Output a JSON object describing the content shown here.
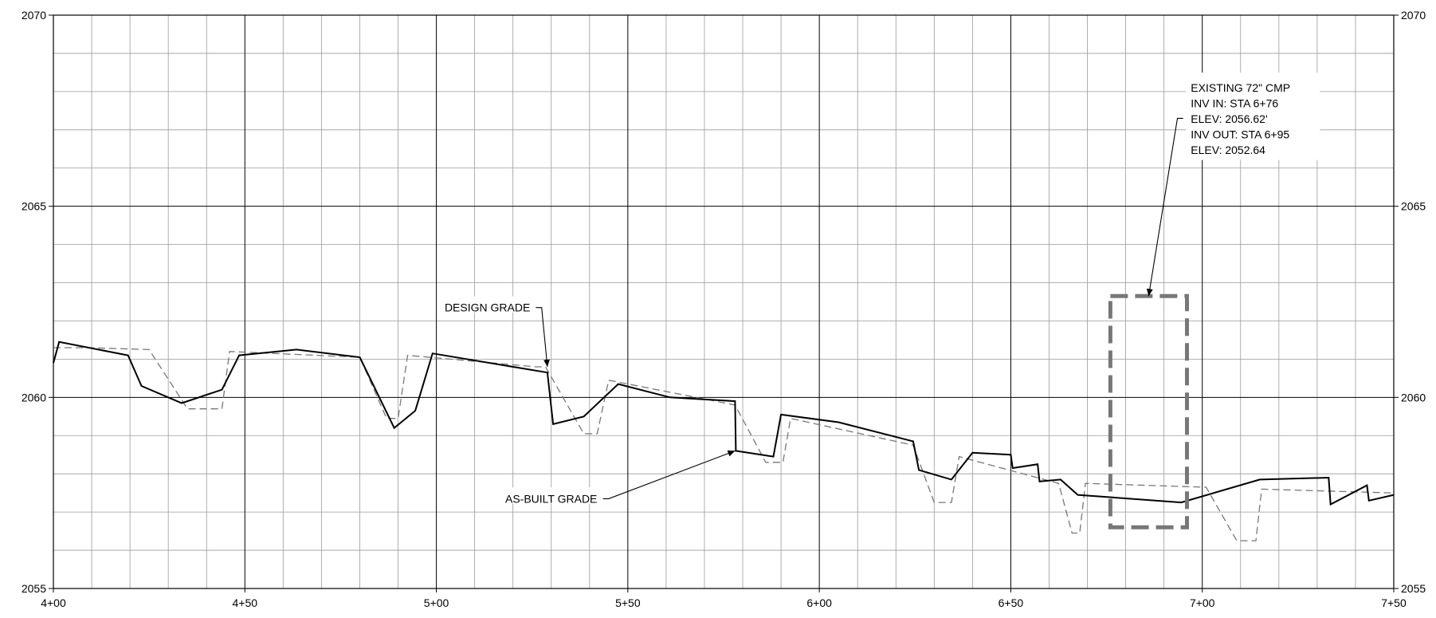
{
  "chart_data": {
    "type": "line",
    "title": "",
    "xlabel": "",
    "ylabel": "",
    "xlim": [
      400,
      750
    ],
    "ylim": [
      2055,
      2070
    ],
    "grid": true,
    "x_ticks": [
      400,
      450,
      500,
      550,
      600,
      650,
      700,
      750
    ],
    "x_tick_labels": [
      "4+00",
      "4+50",
      "5+00",
      "5+50",
      "6+00",
      "6+50",
      "7+00",
      "7+50"
    ],
    "y_ticks": [
      2055,
      2060,
      2065,
      2070
    ],
    "y_tick_labels": [
      "2055",
      "2060",
      "2065",
      "2070"
    ],
    "series": [
      {
        "name": "AS-BUILT GRADE",
        "style": "solid",
        "color": "#000000",
        "points": [
          [
            400,
            2060.9
          ],
          [
            401.5,
            2061.45
          ],
          [
            419.5,
            2061.1
          ],
          [
            423,
            2060.3
          ],
          [
            433.5,
            2059.85
          ],
          [
            444,
            2060.2
          ],
          [
            448.5,
            2061.1
          ],
          [
            463.5,
            2061.25
          ],
          [
            480,
            2061.05
          ],
          [
            489,
            2059.2
          ],
          [
            494.5,
            2059.65
          ],
          [
            499,
            2061.15
          ],
          [
            529,
            2060.65
          ],
          [
            530.5,
            2059.3
          ],
          [
            538.5,
            2059.5
          ],
          [
            547.5,
            2060.35
          ],
          [
            561,
            2060
          ],
          [
            578,
            2059.9
          ],
          [
            578.2,
            2058.6
          ],
          [
            588,
            2058.45
          ],
          [
            590,
            2059.55
          ],
          [
            605,
            2059.35
          ],
          [
            624.5,
            2058.85
          ],
          [
            626,
            2058.1
          ],
          [
            634.5,
            2057.85
          ],
          [
            640,
            2058.55
          ],
          [
            650,
            2058.5
          ],
          [
            650.5,
            2058.15
          ],
          [
            657,
            2058.25
          ],
          [
            657.5,
            2057.8
          ],
          [
            663,
            2057.85
          ],
          [
            667.5,
            2057.45
          ],
          [
            694.5,
            2057.25
          ],
          [
            715,
            2057.85
          ],
          [
            733,
            2057.9
          ],
          [
            733.5,
            2057.2
          ],
          [
            743,
            2057.7
          ],
          [
            743.5,
            2057.3
          ],
          [
            750,
            2057.45
          ]
        ]
      },
      {
        "name": "DESIGN GRADE",
        "style": "dashed",
        "color": "#777777",
        "points": [
          [
            400,
            2061.3
          ],
          [
            409,
            2061.3
          ],
          [
            425,
            2061.25
          ],
          [
            435,
            2059.7
          ],
          [
            444,
            2059.7
          ],
          [
            446,
            2061.2
          ],
          [
            480,
            2061.05
          ],
          [
            487,
            2059.45
          ],
          [
            490,
            2059.45
          ],
          [
            492.5,
            2061.1
          ],
          [
            526,
            2060.8
          ],
          [
            528.5,
            2060.8
          ],
          [
            538.5,
            2059.05
          ],
          [
            542,
            2059.05
          ],
          [
            545,
            2060.45
          ],
          [
            578,
            2059.8
          ],
          [
            586,
            2058.3
          ],
          [
            590.5,
            2058.3
          ],
          [
            592.5,
            2059.45
          ],
          [
            624.5,
            2058.75
          ],
          [
            630,
            2057.25
          ],
          [
            634.5,
            2057.25
          ],
          [
            636.5,
            2058.45
          ],
          [
            662.5,
            2057.75
          ],
          [
            666,
            2056.45
          ],
          [
            668,
            2056.45
          ],
          [
            669.5,
            2057.75
          ],
          [
            701,
            2057.65
          ],
          [
            709,
            2056.25
          ],
          [
            714,
            2056.25
          ],
          [
            715.5,
            2057.6
          ],
          [
            750,
            2057.5
          ]
        ]
      }
    ],
    "callout_box": {
      "x": [
        676,
        696
      ],
      "y": [
        2056.6,
        2062.65
      ]
    },
    "annotations": [
      {
        "id": "design-grade",
        "lines": [
          "DESIGN GRADE"
        ],
        "anchor": "right",
        "text_at": [
          524.5,
          2062.35
        ],
        "leader": [
          [
            526,
            2062.35
          ],
          [
            527.5,
            2062.35
          ],
          [
            529,
            2060.8
          ]
        ]
      },
      {
        "id": "as-built-grade",
        "lines": [
          "AS-BUILT GRADE"
        ],
        "anchor": "right",
        "text_at": [
          542,
          2057.35
        ],
        "leader": [
          [
            543.5,
            2057.35
          ],
          [
            545,
            2057.35
          ],
          [
            578,
            2058.6
          ]
        ]
      },
      {
        "id": "existing-cmp",
        "lines": [
          "EXISTING 72\" CMP",
          "INV IN: STA 6+76",
          "ELEV: 2056.62'",
          "INV OUT: STA 6+95",
          "ELEV: 2052.64"
        ],
        "anchor": "left",
        "text_at": [
          697,
          2068.1
        ],
        "leader": [
          [
            695,
            2067.3
          ],
          [
            693.5,
            2067.3
          ],
          [
            686,
            2062.65
          ]
        ]
      }
    ]
  }
}
